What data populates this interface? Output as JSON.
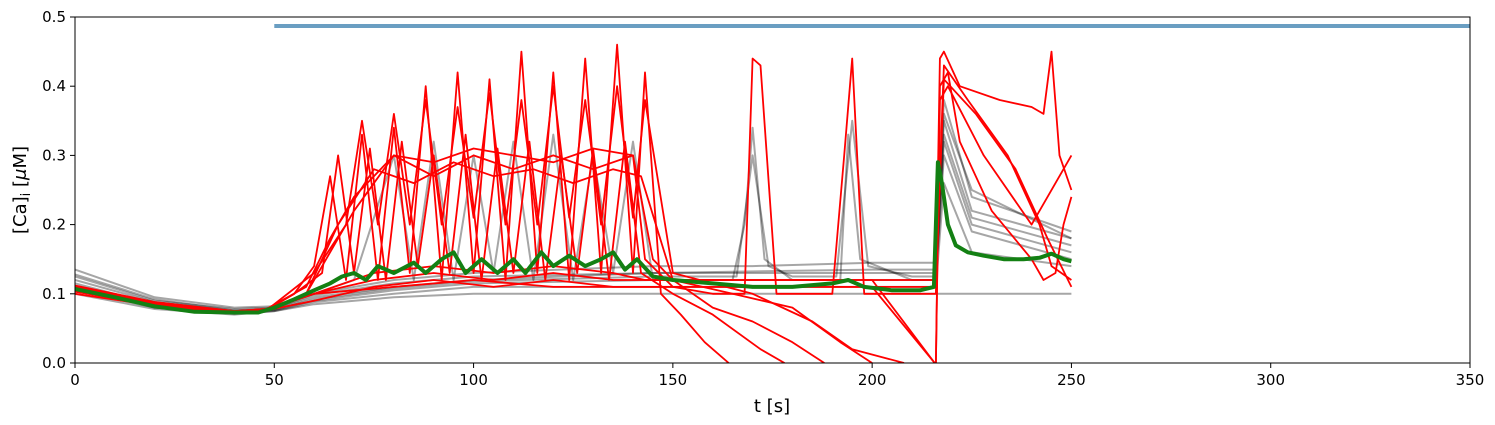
{
  "chart_data": {
    "type": "line",
    "title": "",
    "xlabel": "t [s]",
    "ylabel_parts": {
      "pre": "[Ca]",
      "sub": "i",
      "mid": " [",
      "mu": "μ",
      "post": "M]"
    },
    "xlim": [
      0,
      350
    ],
    "ylim": [
      0,
      0.5
    ],
    "x_ticks": [
      0,
      50,
      100,
      150,
      200,
      250,
      300,
      350
    ],
    "x_tick_labels": [
      "0",
      "50",
      "100",
      "150",
      "200",
      "250",
      "300",
      "350"
    ],
    "y_ticks": [
      0.0,
      0.1,
      0.2,
      0.3,
      0.4,
      0.5
    ],
    "y_tick_labels": [
      "0.0",
      "0.1",
      "0.2",
      "0.3",
      "0.4",
      "0.5"
    ],
    "grid": false,
    "legend": "none",
    "colors": {
      "black_traces": "#000000",
      "red_traces": "#ff0000",
      "mean": "#138013",
      "stimulus": "#6a9ec2"
    },
    "stimulus": {
      "x": [
        50,
        350
      ],
      "y": [
        0.487,
        0.487
      ]
    },
    "mean_trace": {
      "x": [
        0,
        10,
        20,
        30,
        40,
        46,
        50,
        55,
        60,
        64,
        67,
        70,
        73,
        76,
        80,
        85,
        88,
        92,
        95,
        98,
        102,
        106,
        110,
        113,
        117,
        120,
        124,
        128,
        132,
        135,
        138,
        141,
        145,
        150,
        160,
        170,
        180,
        190,
        194,
        198,
        205,
        212,
        215.5,
        216.5,
        217.5,
        219,
        221,
        224,
        228,
        233,
        238,
        242,
        245,
        248,
        250
      ],
      "y": [
        0.107,
        0.095,
        0.082,
        0.074,
        0.073,
        0.073,
        0.08,
        0.092,
        0.105,
        0.115,
        0.125,
        0.13,
        0.12,
        0.14,
        0.13,
        0.145,
        0.13,
        0.15,
        0.16,
        0.13,
        0.15,
        0.13,
        0.15,
        0.13,
        0.16,
        0.14,
        0.155,
        0.14,
        0.15,
        0.16,
        0.135,
        0.15,
        0.125,
        0.12,
        0.115,
        0.11,
        0.11,
        0.115,
        0.12,
        0.11,
        0.105,
        0.105,
        0.11,
        0.29,
        0.26,
        0.2,
        0.17,
        0.16,
        0.155,
        0.15,
        0.15,
        0.152,
        0.158,
        0.15,
        0.147
      ]
    },
    "black_traces": [
      {
        "x": [
          0,
          20,
          40,
          50,
          60,
          80,
          100,
          120,
          145,
          170,
          200,
          216,
          220,
          250
        ],
        "y": [
          0.1,
          0.078,
          0.07,
          0.075,
          0.085,
          0.095,
          0.1,
          0.1,
          0.1,
          0.1,
          0.1,
          0.1,
          0.1,
          0.1
        ]
      },
      {
        "x": [
          0,
          20,
          40,
          50,
          60,
          80,
          100,
          145,
          170,
          200,
          216,
          218,
          225,
          250
        ],
        "y": [
          0.12,
          0.088,
          0.075,
          0.078,
          0.095,
          0.11,
          0.12,
          0.13,
          0.13,
          0.13,
          0.13,
          0.33,
          0.21,
          0.17
        ]
      },
      {
        "x": [
          0,
          20,
          40,
          50,
          60,
          80,
          100,
          145,
          170,
          200,
          216,
          218,
          225,
          250
        ],
        "y": [
          0.135,
          0.095,
          0.08,
          0.082,
          0.1,
          0.12,
          0.13,
          0.14,
          0.14,
          0.145,
          0.145,
          0.38,
          0.24,
          0.19
        ]
      },
      {
        "x": [
          0,
          20,
          40,
          50,
          60,
          80,
          100,
          145,
          150,
          165,
          168,
          170,
          173,
          180,
          192,
          194,
          197,
          210,
          216,
          218,
          225,
          250
        ],
        "y": [
          0.11,
          0.08,
          0.072,
          0.076,
          0.09,
          0.105,
          0.115,
          0.12,
          0.12,
          0.12,
          0.2,
          0.34,
          0.15,
          0.12,
          0.12,
          0.33,
          0.15,
          0.12,
          0.12,
          0.32,
          0.2,
          0.16
        ]
      },
      {
        "x": [
          0,
          20,
          40,
          50,
          60,
          80,
          100,
          145,
          150,
          166,
          170,
          174,
          180,
          191,
          195,
          199,
          210,
          216,
          218,
          225,
          250
        ],
        "y": [
          0.115,
          0.085,
          0.073,
          0.077,
          0.092,
          0.108,
          0.118,
          0.125,
          0.125,
          0.125,
          0.3,
          0.14,
          0.125,
          0.125,
          0.35,
          0.14,
          0.125,
          0.125,
          0.35,
          0.22,
          0.18
        ]
      },
      {
        "x": [
          0,
          20,
          40,
          50,
          60,
          80,
          100,
          145,
          200,
          216,
          218,
          225,
          250
        ],
        "y": [
          0.105,
          0.08,
          0.071,
          0.075,
          0.088,
          0.1,
          0.11,
          0.11,
          0.11,
          0.11,
          0.26,
          0.16,
          0.14
        ]
      },
      {
        "x": [
          0,
          20,
          40,
          50,
          70,
          80,
          85,
          90,
          95,
          100,
          105,
          110,
          115,
          120,
          125,
          130,
          135,
          140,
          145,
          200,
          216,
          218,
          225,
          250
        ],
        "y": [
          0.125,
          0.09,
          0.078,
          0.08,
          0.12,
          0.3,
          0.12,
          0.32,
          0.12,
          0.3,
          0.13,
          0.32,
          0.12,
          0.33,
          0.12,
          0.3,
          0.13,
          0.32,
          0.12,
          0.12,
          0.12,
          0.3,
          0.19,
          0.15
        ]
      },
      {
        "x": [
          0,
          20,
          40,
          50,
          60,
          80,
          100,
          145,
          200,
          216,
          218,
          225,
          250
        ],
        "y": [
          0.128,
          0.092,
          0.076,
          0.079,
          0.098,
          0.115,
          0.125,
          0.13,
          0.135,
          0.135,
          0.36,
          0.25,
          0.18
        ]
      }
    ],
    "red_traces": [
      {
        "x": [
          0,
          20,
          40,
          48,
          55,
          60,
          64,
          68,
          72,
          76,
          80,
          84,
          88,
          92,
          96,
          100,
          104,
          108,
          112,
          116,
          120,
          124,
          128,
          132,
          136,
          140,
          143,
          147,
          152,
          158,
          164
        ],
        "y": [
          0.105,
          0.085,
          0.073,
          0.076,
          0.1,
          0.14,
          0.27,
          0.12,
          0.33,
          0.12,
          0.34,
          0.13,
          0.4,
          0.12,
          0.42,
          0.13,
          0.41,
          0.12,
          0.45,
          0.13,
          0.42,
          0.12,
          0.44,
          0.13,
          0.46,
          0.13,
          0.42,
          0.1,
          0.07,
          0.03,
          0.0
        ]
      },
      {
        "x": [
          0,
          20,
          40,
          48,
          55,
          62,
          66,
          70,
          74,
          78,
          82,
          86,
          90,
          94,
          98,
          102,
          106,
          110,
          114,
          118,
          122,
          126,
          130,
          134,
          138,
          142,
          150,
          160,
          172,
          178
        ],
        "y": [
          0.108,
          0.086,
          0.074,
          0.077,
          0.1,
          0.13,
          0.3,
          0.13,
          0.31,
          0.12,
          0.32,
          0.14,
          0.3,
          0.13,
          0.33,
          0.12,
          0.31,
          0.13,
          0.32,
          0.12,
          0.3,
          0.13,
          0.31,
          0.12,
          0.32,
          0.13,
          0.1,
          0.07,
          0.02,
          0.0
        ]
      },
      {
        "x": [
          0,
          20,
          40,
          48,
          58,
          64,
          70,
          80,
          90,
          100,
          110,
          120,
          130,
          140,
          143,
          150,
          160,
          168,
          170,
          172,
          176,
          190,
          193,
          195,
          198,
          205,
          214,
          216,
          217,
          218,
          222,
          232,
          240,
          243,
          245,
          247,
          250
        ],
        "y": [
          0.11,
          0.087,
          0.075,
          0.078,
          0.11,
          0.18,
          0.24,
          0.3,
          0.29,
          0.31,
          0.3,
          0.29,
          0.31,
          0.3,
          0.15,
          0.11,
          0.1,
          0.1,
          0.44,
          0.43,
          0.1,
          0.1,
          0.3,
          0.44,
          0.1,
          0.1,
          0.1,
          0.1,
          0.44,
          0.45,
          0.4,
          0.38,
          0.37,
          0.36,
          0.45,
          0.3,
          0.25
        ]
      },
      {
        "x": [
          0,
          20,
          40,
          48,
          58,
          66,
          75,
          85,
          95,
          105,
          115,
          125,
          135,
          142,
          150,
          165,
          180,
          192,
          200
        ],
        "y": [
          0.1,
          0.083,
          0.072,
          0.075,
          0.1,
          0.2,
          0.28,
          0.26,
          0.29,
          0.27,
          0.28,
          0.26,
          0.28,
          0.27,
          0.12,
          0.1,
          0.08,
          0.03,
          0.0
        ]
      },
      {
        "x": [
          0,
          20,
          40,
          48,
          60,
          68,
          72,
          76,
          80,
          84,
          88,
          92,
          96,
          100,
          104,
          108,
          112,
          116,
          120,
          124,
          128,
          132,
          136,
          140,
          143,
          150,
          170,
          185,
          195,
          208
        ],
        "y": [
          0.103,
          0.084,
          0.073,
          0.076,
          0.13,
          0.2,
          0.35,
          0.2,
          0.36,
          0.2,
          0.38,
          0.2,
          0.37,
          0.21,
          0.39,
          0.2,
          0.38,
          0.2,
          0.4,
          0.21,
          0.38,
          0.2,
          0.4,
          0.21,
          0.38,
          0.13,
          0.1,
          0.06,
          0.02,
          0.0
        ]
      },
      {
        "x": [
          0,
          20,
          40,
          48,
          60,
          75,
          90,
          105,
          120,
          135,
          143,
          150,
          170,
          200,
          215.7,
          216,
          217,
          219,
          222,
          230,
          240,
          243,
          246,
          248,
          250
        ],
        "y": [
          0.112,
          0.088,
          0.075,
          0.078,
          0.1,
          0.13,
          0.14,
          0.13,
          0.14,
          0.13,
          0.12,
          0.12,
          0.12,
          0.12,
          0.0,
          0.0,
          0.4,
          0.42,
          0.32,
          0.22,
          0.15,
          0.12,
          0.13,
          0.2,
          0.24
        ]
      },
      {
        "x": [
          0,
          20,
          40,
          48,
          60,
          75,
          90,
          105,
          120,
          135,
          143,
          150,
          170,
          200,
          216,
          218,
          224,
          234,
          242,
          245,
          250
        ],
        "y": [
          0.106,
          0.085,
          0.073,
          0.076,
          0.1,
          0.12,
          0.13,
          0.12,
          0.13,
          0.12,
          0.12,
          0.12,
          0.12,
          0.12,
          0.12,
          0.43,
          0.38,
          0.3,
          0.2,
          0.14,
          0.12
        ]
      },
      {
        "x": [
          0,
          20,
          40,
          48,
          58,
          70,
          80,
          90,
          100,
          110,
          120,
          130,
          140,
          145,
          150,
          155,
          160,
          170,
          180,
          188
        ],
        "y": [
          0.109,
          0.087,
          0.074,
          0.077,
          0.1,
          0.22,
          0.3,
          0.27,
          0.3,
          0.28,
          0.3,
          0.28,
          0.3,
          0.15,
          0.12,
          0.1,
          0.08,
          0.06,
          0.03,
          0.0
        ]
      },
      {
        "x": [
          0,
          20,
          40,
          48,
          60,
          75,
          90,
          105,
          120,
          135,
          143,
          150,
          170,
          200,
          216,
          218,
          226,
          236,
          244,
          250
        ],
        "y": [
          0.104,
          0.084,
          0.073,
          0.076,
          0.09,
          0.11,
          0.12,
          0.11,
          0.12,
          0.11,
          0.11,
          0.11,
          0.11,
          0.11,
          0.11,
          0.41,
          0.36,
          0.28,
          0.18,
          0.11
        ]
      },
      {
        "x": [
          0,
          20,
          40,
          48,
          60,
          80,
          100,
          120,
          143,
          150,
          170,
          200,
          215.7,
          216,
          217,
          219,
          228,
          240,
          246,
          250
        ],
        "y": [
          0.11,
          0.088,
          0.075,
          0.078,
          0.1,
          0.11,
          0.12,
          0.11,
          0.11,
          0.11,
          0.11,
          0.11,
          0.0,
          0.0,
          0.38,
          0.4,
          0.3,
          0.2,
          0.26,
          0.3
        ]
      }
    ]
  }
}
